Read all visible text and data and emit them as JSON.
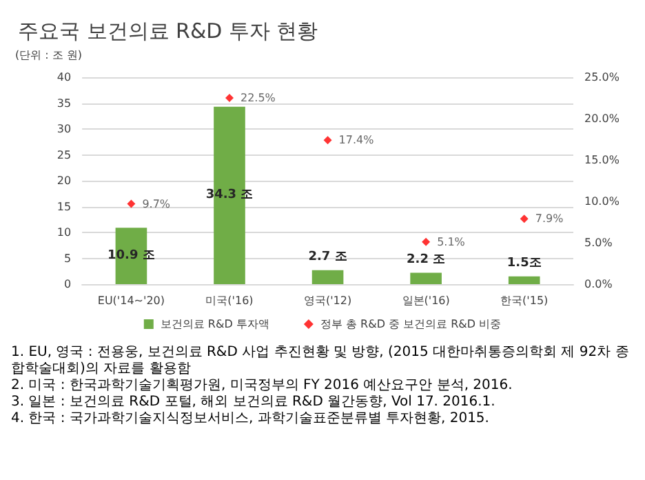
{
  "chart_data": {
    "type": "bar",
    "title": "주요국 보건의료 R&D 투자 현황",
    "ylabel": "(단위 : 조 원)",
    "categories": [
      "EU('14~'20)",
      "미국('16)",
      "영국('12)",
      "일본('16)",
      "한국('15)"
    ],
    "series": [
      {
        "name": "보건의료 R&D 투자액",
        "color": "#70ad47",
        "values": [
          10.9,
          34.3,
          2.7,
          2.2,
          1.5
        ],
        "value_labels": [
          "10.9 조",
          "34.3 조",
          "2.7 조",
          "2.2 조",
          "1.5조"
        ]
      },
      {
        "name": "정부 총 R&D 중 보건의료 R&D 비중",
        "type": "scatter",
        "axis": "y2",
        "color": "#ff0000",
        "values": [
          9.7,
          22.5,
          17.4,
          5.1,
          7.9
        ],
        "value_labels": [
          "9.7%",
          "22.5%",
          "17.4%",
          "5.1%",
          "7.9%"
        ]
      }
    ],
    "ylim": [
      0,
      40
    ],
    "yticks": [
      0,
      5,
      10,
      15,
      20,
      25,
      30,
      35,
      40
    ],
    "y2lim": [
      0,
      25
    ],
    "y2ticks": [
      {
        "value": 0,
        "label": "0.0%"
      },
      {
        "value": 5,
        "label": "5.0%"
      },
      {
        "value": 10,
        "label": "10.0%"
      },
      {
        "value": 15,
        "label": "15.0%"
      },
      {
        "value": 20,
        "label": "20.0%"
      },
      {
        "value": 25,
        "label": "25.0%"
      }
    ],
    "grid": "y",
    "legend": "bottom",
    "marker": "diamond",
    "annotations": [
      "1. EU, 영국 : 전용웅, 보건의료 R&D 사업 추진현황 및 방향, (2015 대한마취통증의학회 제 92차 종합학술대회)의 자료를 활용함",
      "2. 미국 : 한국과학기술기획평가원, 미국정부의 FY 2016 예산요구안 분석, 2016.",
      "3. 일본 : 보건의료 R&D 포털, 해외 보건의료 R&D 월간동향, Vol 17. 2016.1.",
      "4. 한국 : 국가과학기술지식정보서비스, 과학기술표준분류별 투자현황, 2015."
    ]
  }
}
